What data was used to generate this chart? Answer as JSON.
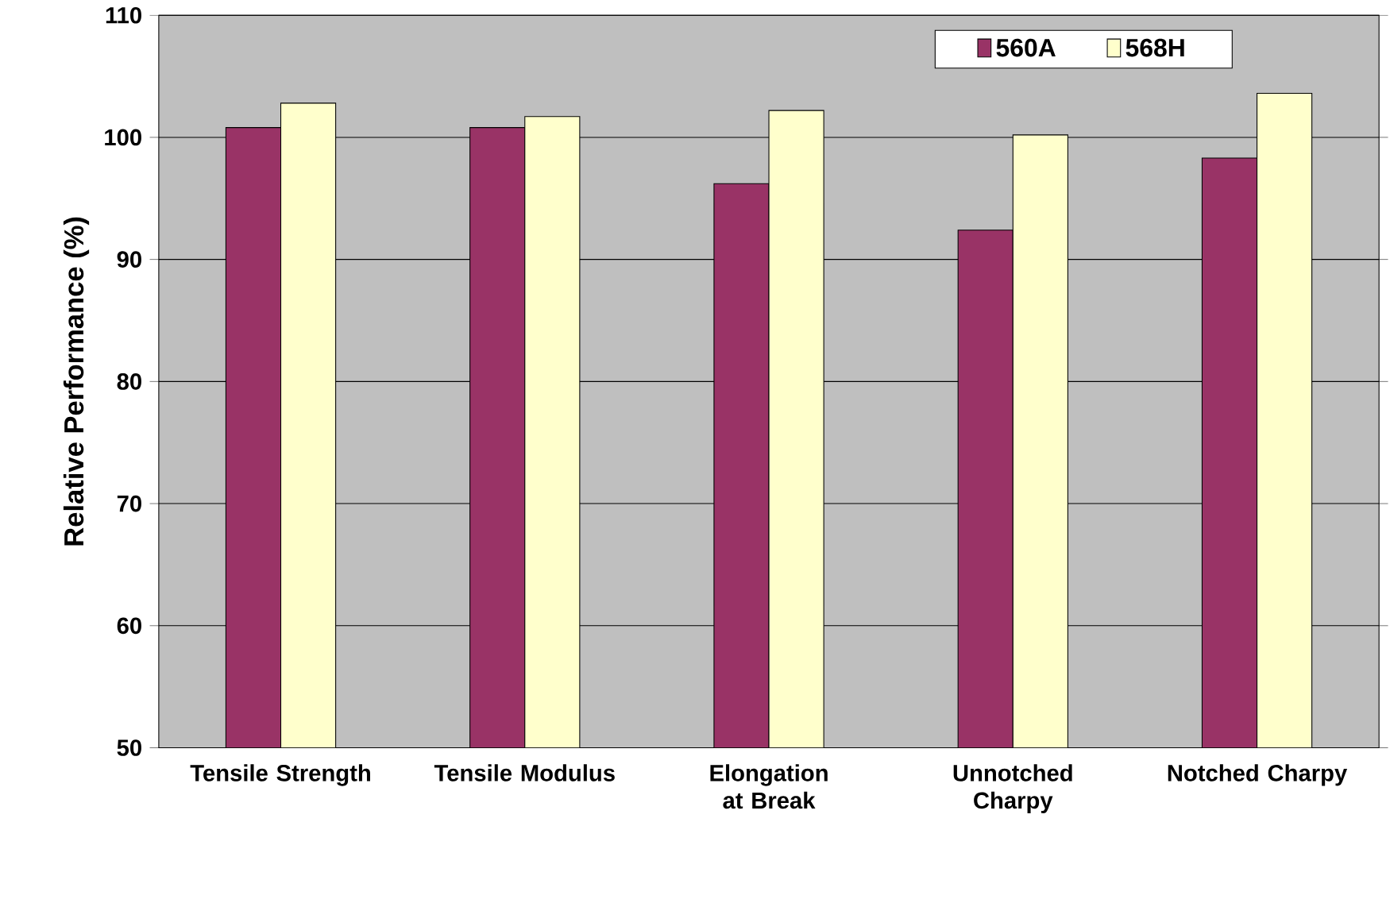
{
  "chart_data": {
    "type": "bar",
    "ylabel": "Relative Performance (%)",
    "categories": [
      "Tensile Strength",
      "Tensile Modulus",
      "Elongation at Break",
      "Unnotched Charpy",
      "Notched Charpy"
    ],
    "series": [
      {
        "name": "560A",
        "color": "#993366",
        "values": [
          100.8,
          100.8,
          96.2,
          92.4,
          98.3
        ]
      },
      {
        "name": "568H",
        "color": "#ffffcc",
        "values": [
          102.8,
          101.7,
          102.2,
          100.2,
          103.6
        ]
      }
    ],
    "ylim": [
      50,
      110
    ],
    "yticks": [
      50,
      60,
      70,
      80,
      90,
      100,
      110
    ],
    "grid": "y",
    "legend": "top right"
  }
}
